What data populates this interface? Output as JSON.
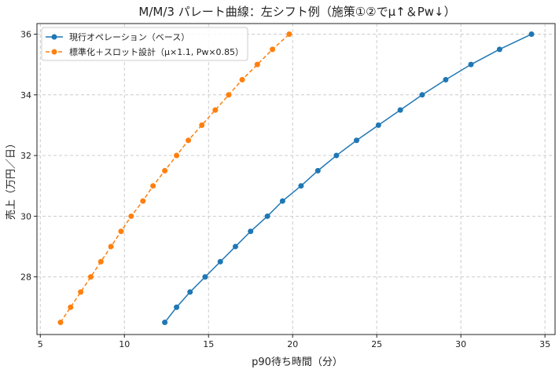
{
  "chart_data": {
    "type": "line",
    "title": "M/M/3 パレート曲線：左シフト例（施策①②でμ↑＆Pw↓）",
    "xlabel": "p90待ち時間（分）",
    "ylabel": "売上（万円／日）",
    "xlim": [
      4.8,
      35.6
    ],
    "ylim": [
      26.1,
      36.35
    ],
    "xticks": [
      5,
      10,
      15,
      20,
      25,
      30,
      35
    ],
    "yticks": [
      28,
      30,
      32,
      34,
      36
    ],
    "grid": true,
    "legend_position": "top-left",
    "series": [
      {
        "name": "現行オペレーション（ベース）",
        "color": "#1f77b4",
        "style": "solid",
        "x": [
          12.4,
          13.1,
          13.9,
          14.8,
          15.7,
          16.6,
          17.5,
          18.5,
          19.4,
          20.5,
          21.5,
          22.6,
          23.8,
          25.1,
          26.4,
          27.7,
          29.1,
          30.6,
          32.3,
          34.2
        ],
        "y": [
          26.5,
          27,
          27.5,
          28,
          28.5,
          29,
          29.5,
          30,
          30.5,
          31,
          31.5,
          32,
          32.5,
          33,
          33.5,
          34,
          34.5,
          35,
          35.5,
          36
        ]
      },
      {
        "name": "標準化＋スロット設計（μ×1.1, Pw×0.85）",
        "color": "#ff7f0e",
        "style": "dashed",
        "x": [
          6.2,
          6.8,
          7.4,
          8.0,
          8.6,
          9.2,
          9.8,
          10.4,
          11.1,
          11.7,
          12.4,
          13.1,
          13.8,
          14.6,
          15.4,
          16.2,
          17.0,
          17.9,
          18.8,
          19.8
        ],
        "y": [
          26.5,
          27,
          27.5,
          28,
          28.5,
          29,
          29.5,
          30,
          30.5,
          31,
          31.5,
          32,
          32.5,
          33,
          33.5,
          34,
          34.5,
          35,
          35.5,
          36
        ]
      }
    ]
  }
}
